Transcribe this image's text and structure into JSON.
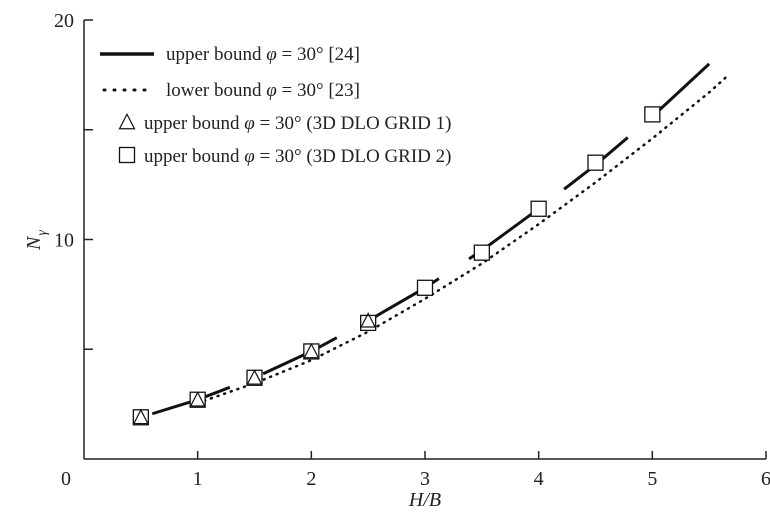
{
  "chart_data": {
    "type": "line",
    "xlabel": "H/B",
    "ylabel": "N",
    "ylabel_sub": "γ",
    "xlim": [
      0,
      6
    ],
    "ylim": [
      0,
      20
    ],
    "x_ticks": [
      "0",
      "1",
      "2",
      "3",
      "4",
      "5",
      "6"
    ],
    "y_ticks": [
      "0",
      "10",
      "20"
    ],
    "grid": false,
    "legend_position": "top-left",
    "series": [
      {
        "name": "upper bound",
        "name_phi": "φ",
        "name_rest": " = 30° [24]",
        "style": "solid",
        "x": [
          0.5,
          1.0,
          1.5,
          2.0,
          2.5,
          3.0,
          3.5,
          4.0,
          4.5,
          5.0,
          5.5
        ],
        "y": [
          1.9,
          2.7,
          3.7,
          4.9,
          6.3,
          7.8,
          9.5,
          11.4,
          13.4,
          15.6,
          18.0
        ]
      },
      {
        "name": "lower bound",
        "name_phi": "φ",
        "name_rest": " = 30° [23]",
        "style": "dotted",
        "x": [
          1.0,
          1.5,
          2.0,
          2.5,
          3.0,
          3.5,
          4.0,
          4.5,
          5.0,
          5.5,
          5.65
        ],
        "y": [
          2.55,
          3.45,
          4.5,
          5.8,
          7.3,
          8.9,
          10.7,
          12.6,
          14.6,
          16.7,
          17.4
        ]
      },
      {
        "name": "upper bound",
        "name_phi": "φ",
        "name_rest": " = 30° (3D DLO GRID 1)",
        "marker": "triangle",
        "x": [
          0.5,
          1.0,
          1.5,
          2.0,
          2.5
        ],
        "y": [
          1.9,
          2.7,
          3.7,
          4.9,
          6.3
        ]
      },
      {
        "name": "upper bound",
        "name_phi": "φ",
        "name_rest": " = 30° (3D DLO GRID 2)",
        "marker": "square",
        "x": [
          0.5,
          1.0,
          1.5,
          2.0,
          2.5,
          3.0,
          3.5,
          4.0,
          4.5,
          5.0
        ],
        "y": [
          1.9,
          2.7,
          3.7,
          4.9,
          6.2,
          7.8,
          9.4,
          11.4,
          13.5,
          15.7
        ]
      }
    ]
  }
}
